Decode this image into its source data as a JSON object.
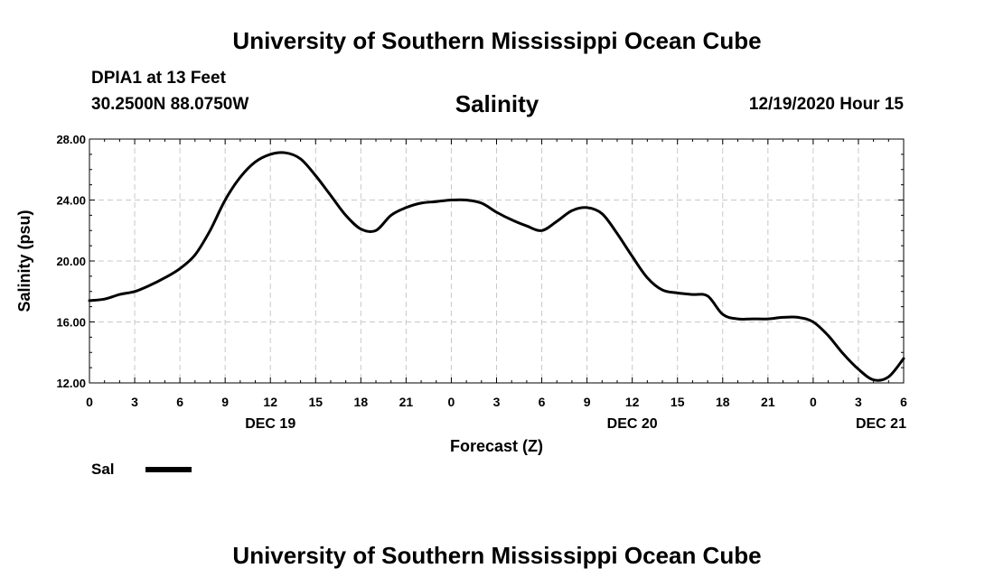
{
  "header": {
    "title": "University of Southern Mississippi Ocean Cube",
    "station": "DPIA1 at 13 Feet",
    "coords": "30.2500N 88.0750W",
    "plot_title": "Salinity",
    "run_time": "12/19/2020 Hour 15"
  },
  "footer": {
    "title": "University of Southern Mississippi Ocean Cube"
  },
  "legend": {
    "label": "Sal"
  },
  "chart_data": {
    "type": "line",
    "title": "Salinity",
    "xlabel": "Forecast (Z)",
    "ylabel": "Salinity (psu)",
    "ylim": [
      12,
      28
    ],
    "xlim": [
      0,
      54
    ],
    "x_unit": "hours since Dec 19 00Z",
    "yticks": [
      12,
      16,
      20,
      24,
      28
    ],
    "ytick_labels": [
      "12.00",
      "16.00",
      "20.00",
      "24.00",
      "28.00"
    ],
    "xticks": [
      0,
      3,
      6,
      9,
      12,
      15,
      18,
      21,
      24,
      27,
      30,
      33,
      36,
      39,
      42,
      45,
      48,
      51,
      54
    ],
    "xtick_labels": [
      "0",
      "3",
      "6",
      "9",
      "12",
      "15",
      "18",
      "21",
      "0",
      "3",
      "6",
      "9",
      "12",
      "15",
      "18",
      "21",
      "0",
      "3",
      "6"
    ],
    "day_labels": [
      {
        "x": 12,
        "label": "DEC 19"
      },
      {
        "x": 36,
        "label": "DEC 20"
      },
      {
        "x": 52.5,
        "label": "DEC 21"
      }
    ],
    "grid": true,
    "legend_position": "bottom-left",
    "series": [
      {
        "name": "Sal",
        "color": "#000000",
        "x": [
          0,
          1,
          2,
          3,
          4,
          5,
          6,
          7,
          8,
          9,
          10,
          11,
          12,
          13,
          14,
          15,
          16,
          17,
          18,
          19,
          20,
          21,
          22,
          23,
          24,
          25,
          26,
          27,
          28,
          29,
          30,
          31,
          32,
          33,
          34,
          35,
          36,
          37,
          38,
          39,
          40,
          41,
          42,
          43,
          44,
          45,
          46,
          47,
          48,
          49,
          50,
          51,
          52,
          53,
          54
        ],
        "y": [
          17.4,
          17.5,
          17.8,
          18.0,
          18.4,
          18.9,
          19.5,
          20.4,
          22.0,
          24.0,
          25.5,
          26.5,
          27.0,
          27.1,
          26.7,
          25.6,
          24.3,
          23.0,
          22.1,
          22.0,
          23.0,
          23.5,
          23.8,
          23.9,
          24.0,
          24.0,
          23.8,
          23.2,
          22.7,
          22.3,
          22.0,
          22.6,
          23.3,
          23.5,
          23.1,
          21.8,
          20.3,
          18.9,
          18.1,
          17.9,
          17.8,
          17.7,
          16.5,
          16.2,
          16.2,
          16.2,
          16.3,
          16.3,
          16.0,
          15.1,
          13.9,
          12.9,
          12.2,
          12.4,
          13.6
        ]
      }
    ]
  }
}
